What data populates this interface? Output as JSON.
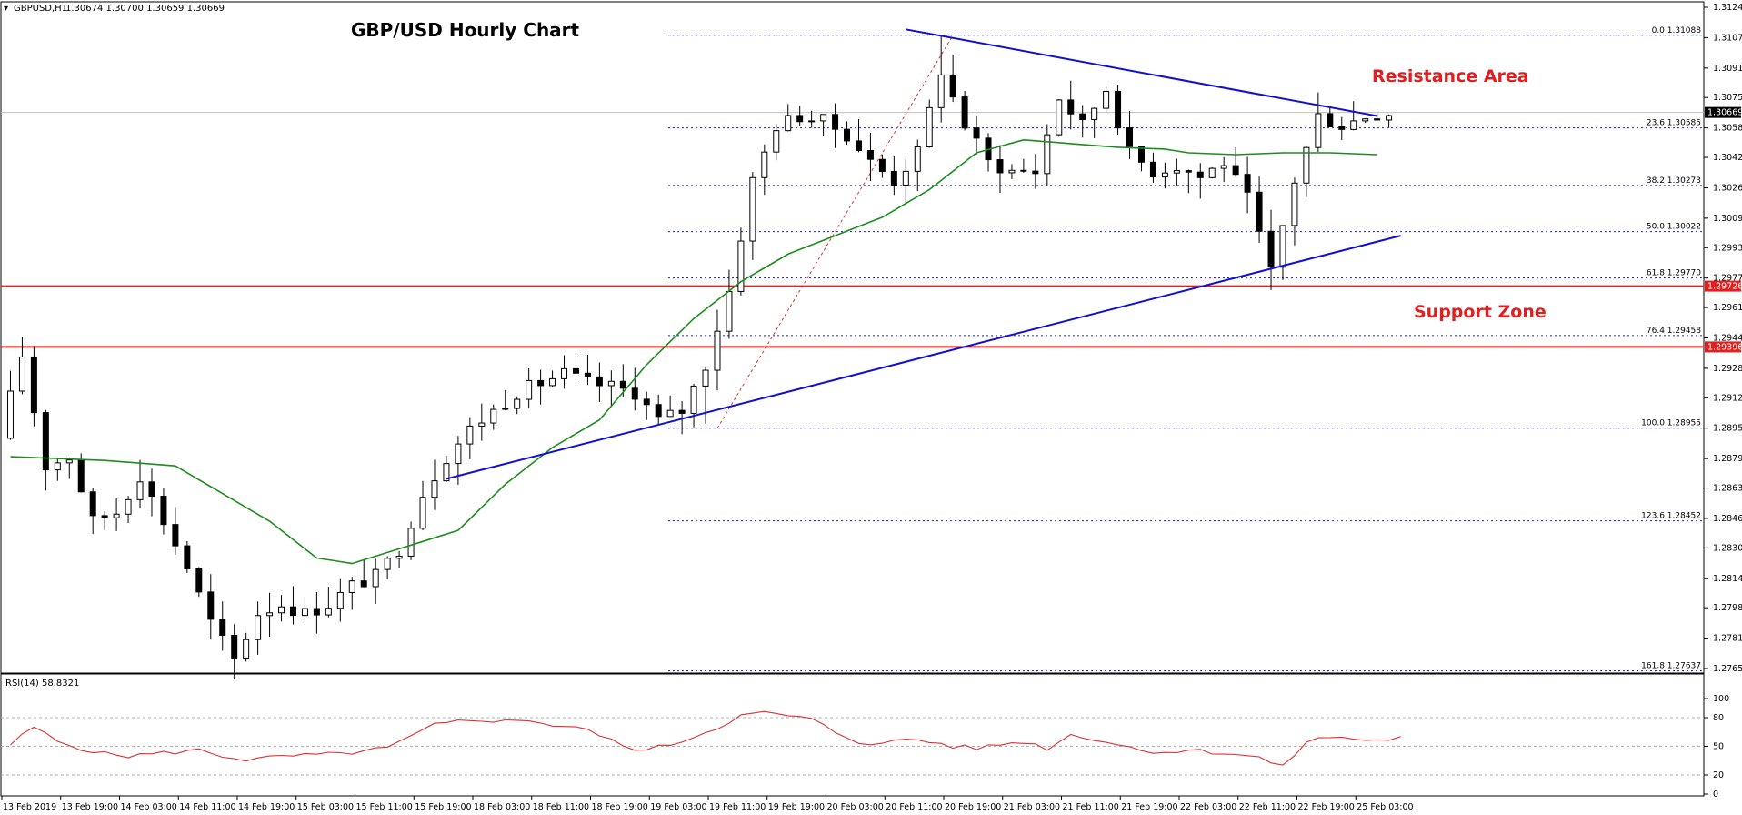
{
  "header": {
    "symbol_label": "GBPUSD,H1",
    "ohlc": "1.30674 1.30700 1.30659 1.30669"
  },
  "title": "GBP/USD Hourly Chart",
  "annotations": {
    "resistance": "Resistance Area",
    "support": "Support Zone"
  },
  "price_axis": {
    "ticks": [
      "1.31240",
      "1.31075",
      "1.30910",
      "1.30750",
      "1.30585",
      "1.30425",
      "1.30260",
      "1.30095",
      "1.29935",
      "1.29770",
      "1.29610",
      "1.29445",
      "1.29280",
      "1.29120",
      "1.28955",
      "1.28790",
      "1.28630",
      "1.28465",
      "1.28305",
      "1.28140",
      "1.27980",
      "1.27815",
      "1.27650"
    ],
    "current_price": "1.30669",
    "level_upper": "1.29726",
    "level_lower": "1.29396"
  },
  "fib_levels": [
    {
      "label": "0.0 1.31088"
    },
    {
      "label": "23.6 1.30585"
    },
    {
      "label": "38.2 1.30273"
    },
    {
      "label": "50.0 1.30022"
    },
    {
      "label": "61.8 1.29770"
    },
    {
      "label": "76.4 1.29458"
    },
    {
      "label": "100.0 1.28955"
    },
    {
      "label": "123.6 1.28452"
    },
    {
      "label": "161.8 1.27637"
    }
  ],
  "rsi": {
    "label": "RSI(14) 58.8321",
    "ticks": [
      "100",
      "80",
      "50",
      "20",
      "0"
    ]
  },
  "time_axis": [
    "13 Feb 2019",
    "13 Feb 19:00",
    "14 Feb 03:00",
    "14 Feb 11:00",
    "14 Feb 19:00",
    "15 Feb 03:00",
    "15 Feb 11:00",
    "15 Feb 19:00",
    "18 Feb 03:00",
    "18 Feb 11:00",
    "18 Feb 19:00",
    "19 Feb 03:00",
    "19 Feb 11:00",
    "19 Feb 19:00",
    "20 Feb 03:00",
    "20 Feb 11:00",
    "20 Feb 19:00",
    "21 Feb 03:00",
    "21 Feb 11:00",
    "21 Feb 19:00",
    "22 Feb 03:00",
    "22 Feb 11:00",
    "22 Feb 19:00",
    "25 Feb 03:00"
  ],
  "colors": {
    "bull_body": "#ffffff",
    "bear_body": "#000000",
    "moving_average": "#1e8c1e",
    "trend_lines": "#1010d0",
    "horizontal_levels": "#e02020",
    "fib_dotted": "#2020c0",
    "rsi_line": "#e03030",
    "fib_swing": "#e03030"
  },
  "chart_data": [
    {
      "type": "candlestick",
      "title": "GBP/USD Hourly Chart",
      "x_range": [
        "13 Feb 2019",
        "25 Feb 03:00"
      ],
      "ylim": [
        1.2765,
        1.3124
      ],
      "price_path": [
        [
          0,
          1.289
        ],
        [
          2,
          1.2935
        ],
        [
          4,
          1.2875
        ],
        [
          6,
          1.288
        ],
        [
          8,
          1.2845
        ],
        [
          10,
          1.285
        ],
        [
          12,
          1.287
        ],
        [
          14,
          1.2845
        ],
        [
          16,
          1.282
        ],
        [
          18,
          1.279
        ],
        [
          20,
          1.277
        ],
        [
          22,
          1.2795
        ],
        [
          24,
          1.28
        ],
        [
          26,
          1.2795
        ],
        [
          28,
          1.28
        ],
        [
          30,
          1.281
        ],
        [
          32,
          1.2815
        ],
        [
          34,
          1.283
        ],
        [
          36,
          1.286
        ],
        [
          38,
          1.288
        ],
        [
          40,
          1.2895
        ],
        [
          42,
          1.2905
        ],
        [
          44,
          1.2915
        ],
        [
          46,
          1.292
        ],
        [
          48,
          1.2925
        ],
        [
          50,
          1.292
        ],
        [
          52,
          1.2918
        ],
        [
          54,
          1.2915
        ],
        [
          56,
          1.29
        ],
        [
          58,
          1.2905
        ],
        [
          60,
          1.293
        ],
        [
          62,
          1.297
        ],
        [
          64,
          1.303
        ],
        [
          66,
          1.306
        ],
        [
          68,
          1.3065
        ],
        [
          70,
          1.3062
        ],
        [
          72,
          1.3055
        ],
        [
          74,
          1.304
        ],
        [
          76,
          1.303
        ],
        [
          78,
          1.3045
        ],
        [
          80,
          1.309
        ],
        [
          82,
          1.306
        ],
        [
          84,
          1.304
        ],
        [
          86,
          1.3035
        ],
        [
          88,
          1.3035
        ],
        [
          90,
          1.3075
        ],
        [
          92,
          1.306
        ],
        [
          94,
          1.308
        ],
        [
          96,
          1.3045
        ],
        [
          98,
          1.3035
        ],
        [
          100,
          1.3038
        ],
        [
          102,
          1.3032
        ],
        [
          104,
          1.304
        ],
        [
          106,
          1.302
        ],
        [
          108,
          1.298
        ],
        [
          110,
          1.303
        ],
        [
          112,
          1.3065
        ],
        [
          114,
          1.306
        ],
        [
          116,
          1.3065
        ],
        [
          118,
          1.3067
        ]
      ],
      "swing_high": 1.31088,
      "swing_low": 1.28955,
      "current_price": 1.30669,
      "moving_average_path": [
        [
          0,
          1.288
        ],
        [
          8,
          1.2878
        ],
        [
          14,
          1.2875
        ],
        [
          18,
          1.286
        ],
        [
          22,
          1.2845
        ],
        [
          26,
          1.2825
        ],
        [
          29,
          1.2822
        ],
        [
          34,
          1.2832
        ],
        [
          38,
          1.284
        ],
        [
          42,
          1.2865
        ],
        [
          46,
          1.2885
        ],
        [
          50,
          1.29
        ],
        [
          54,
          1.293
        ],
        [
          58,
          1.2955
        ],
        [
          62,
          1.2975
        ],
        [
          66,
          1.299
        ],
        [
          70,
          1.3
        ],
        [
          74,
          1.301
        ],
        [
          78,
          1.3025
        ],
        [
          82,
          1.3045
        ],
        [
          86,
          1.3052
        ],
        [
          90,
          1.305
        ],
        [
          94,
          1.3048
        ],
        [
          98,
          1.3047
        ],
        [
          100,
          1.3045
        ],
        [
          104,
          1.3044
        ],
        [
          108,
          1.3045
        ],
        [
          112,
          1.3045
        ],
        [
          116,
          1.3044
        ]
      ],
      "resistance_trend_line": [
        [
          76,
          1.3112
        ],
        [
          116,
          1.3065
        ]
      ],
      "support_trend_line": [
        [
          37,
          1.2868
        ],
        [
          118,
          1.3
        ]
      ],
      "horizontal_levels": [
        1.29726,
        1.29396
      ],
      "fib_retracement": [
        {
          "ratio": 0.0,
          "price": 1.31088
        },
        {
          "ratio": 23.6,
          "price": 1.30585
        },
        {
          "ratio": 38.2,
          "price": 1.30273
        },
        {
          "ratio": 50.0,
          "price": 1.30022
        },
        {
          "ratio": 61.8,
          "price": 1.2977
        },
        {
          "ratio": 76.4,
          "price": 1.29458
        },
        {
          "ratio": 100.0,
          "price": 1.28955
        },
        {
          "ratio": 123.6,
          "price": 1.28452
        },
        {
          "ratio": 161.8,
          "price": 1.27637
        }
      ]
    },
    {
      "type": "line",
      "title": "RSI(14) 58.8321",
      "ylim": [
        0,
        100
      ],
      "reference_levels": [
        80,
        50,
        20
      ],
      "values": [
        [
          0,
          52
        ],
        [
          2,
          70
        ],
        [
          4,
          55
        ],
        [
          6,
          48
        ],
        [
          8,
          42
        ],
        [
          10,
          40
        ],
        [
          12,
          42
        ],
        [
          14,
          44
        ],
        [
          16,
          46
        ],
        [
          18,
          40
        ],
        [
          20,
          36
        ],
        [
          22,
          38
        ],
        [
          24,
          40
        ],
        [
          26,
          41
        ],
        [
          28,
          42
        ],
        [
          30,
          45
        ],
        [
          32,
          48
        ],
        [
          34,
          60
        ],
        [
          36,
          72
        ],
        [
          38,
          76
        ],
        [
          40,
          78
        ],
        [
          42,
          76
        ],
        [
          44,
          78
        ],
        [
          46,
          72
        ],
        [
          48,
          70
        ],
        [
          50,
          62
        ],
        [
          52,
          50
        ],
        [
          54,
          46
        ],
        [
          56,
          52
        ],
        [
          58,
          60
        ],
        [
          60,
          70
        ],
        [
          62,
          82
        ],
        [
          64,
          85
        ],
        [
          66,
          82
        ],
        [
          68,
          78
        ],
        [
          70,
          65
        ],
        [
          72,
          55
        ],
        [
          74,
          52
        ],
        [
          76,
          58
        ],
        [
          78,
          55
        ],
        [
          80,
          50
        ],
        [
          82,
          48
        ],
        [
          84,
          52
        ],
        [
          86,
          55
        ],
        [
          88,
          48
        ],
        [
          90,
          62
        ],
        [
          92,
          58
        ],
        [
          94,
          52
        ],
        [
          96,
          46
        ],
        [
          98,
          44
        ],
        [
          100,
          46
        ],
        [
          102,
          44
        ],
        [
          104,
          42
        ],
        [
          106,
          38
        ],
        [
          108,
          28
        ],
        [
          110,
          55
        ],
        [
          112,
          60
        ],
        [
          114,
          58
        ],
        [
          116,
          56
        ],
        [
          118,
          59
        ]
      ]
    }
  ]
}
